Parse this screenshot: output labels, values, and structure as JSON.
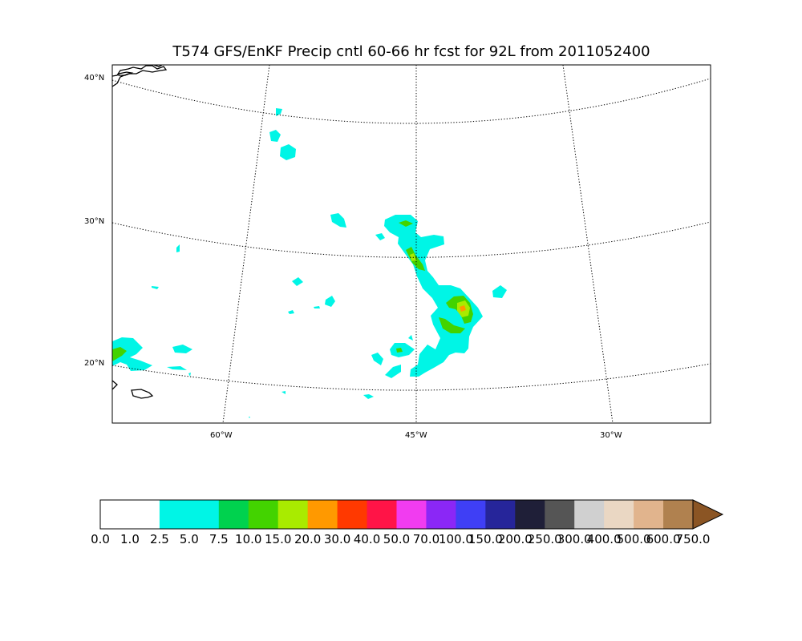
{
  "title": "T574 GFS/EnKF Precip cntl 60-66 hr fcst for 92L from 2011052400",
  "lat_labels": [
    "40°N",
    "30°N",
    "20°N"
  ],
  "lon_labels": [
    "60°W",
    "45°W",
    "30°W"
  ],
  "colorbar": {
    "levels": [
      "0.0",
      "1.0",
      "2.5",
      "5.0",
      "7.5",
      "10.0",
      "15.0",
      "20.0",
      "30.0",
      "40.0",
      "50.0",
      "70.0",
      "100.0",
      "150.0",
      "200.0",
      "250.0",
      "300.0",
      "400.0",
      "500.0",
      "600.0",
      "750.0"
    ],
    "colors": [
      "#ffffff",
      "#ffffff",
      "#00f5e6",
      "#00f5e6",
      "#00d24e",
      "#43d300",
      "#a9eb00",
      "#ff9900",
      "#ff3900",
      "#ff1447",
      "#f13cf0",
      "#8b27f6",
      "#3f3ff5",
      "#26259a",
      "#1f1f38",
      "#555555",
      "#d0d0d0",
      "#ead7c3",
      "#e1b48d",
      "#b0814f"
    ],
    "extend_color": "#8b5524"
  },
  "colors": {
    "precip_light": "#00f5e6",
    "precip_medium": "#43d300",
    "precip_heavy": "#a9eb00",
    "precip_peak": "#ff9900"
  }
}
